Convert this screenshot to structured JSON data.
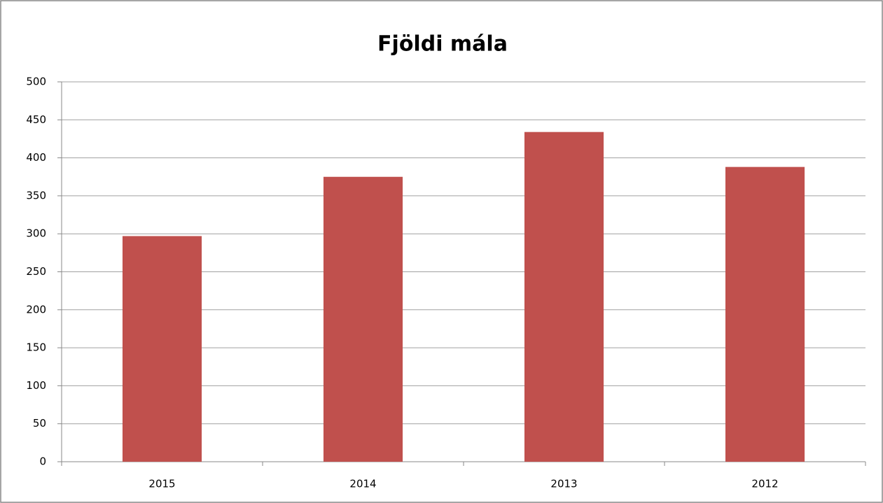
{
  "chart_data": {
    "type": "bar",
    "title": "Fjöldi mála",
    "categories": [
      "2015",
      "2014",
      "2013",
      "2012"
    ],
    "values": [
      297,
      375,
      434,
      388
    ],
    "color": "#c0504d",
    "ylim": [
      0,
      500
    ],
    "yticks": [
      0,
      50,
      100,
      150,
      200,
      250,
      300,
      350,
      400,
      450,
      500
    ],
    "grid": true
  }
}
